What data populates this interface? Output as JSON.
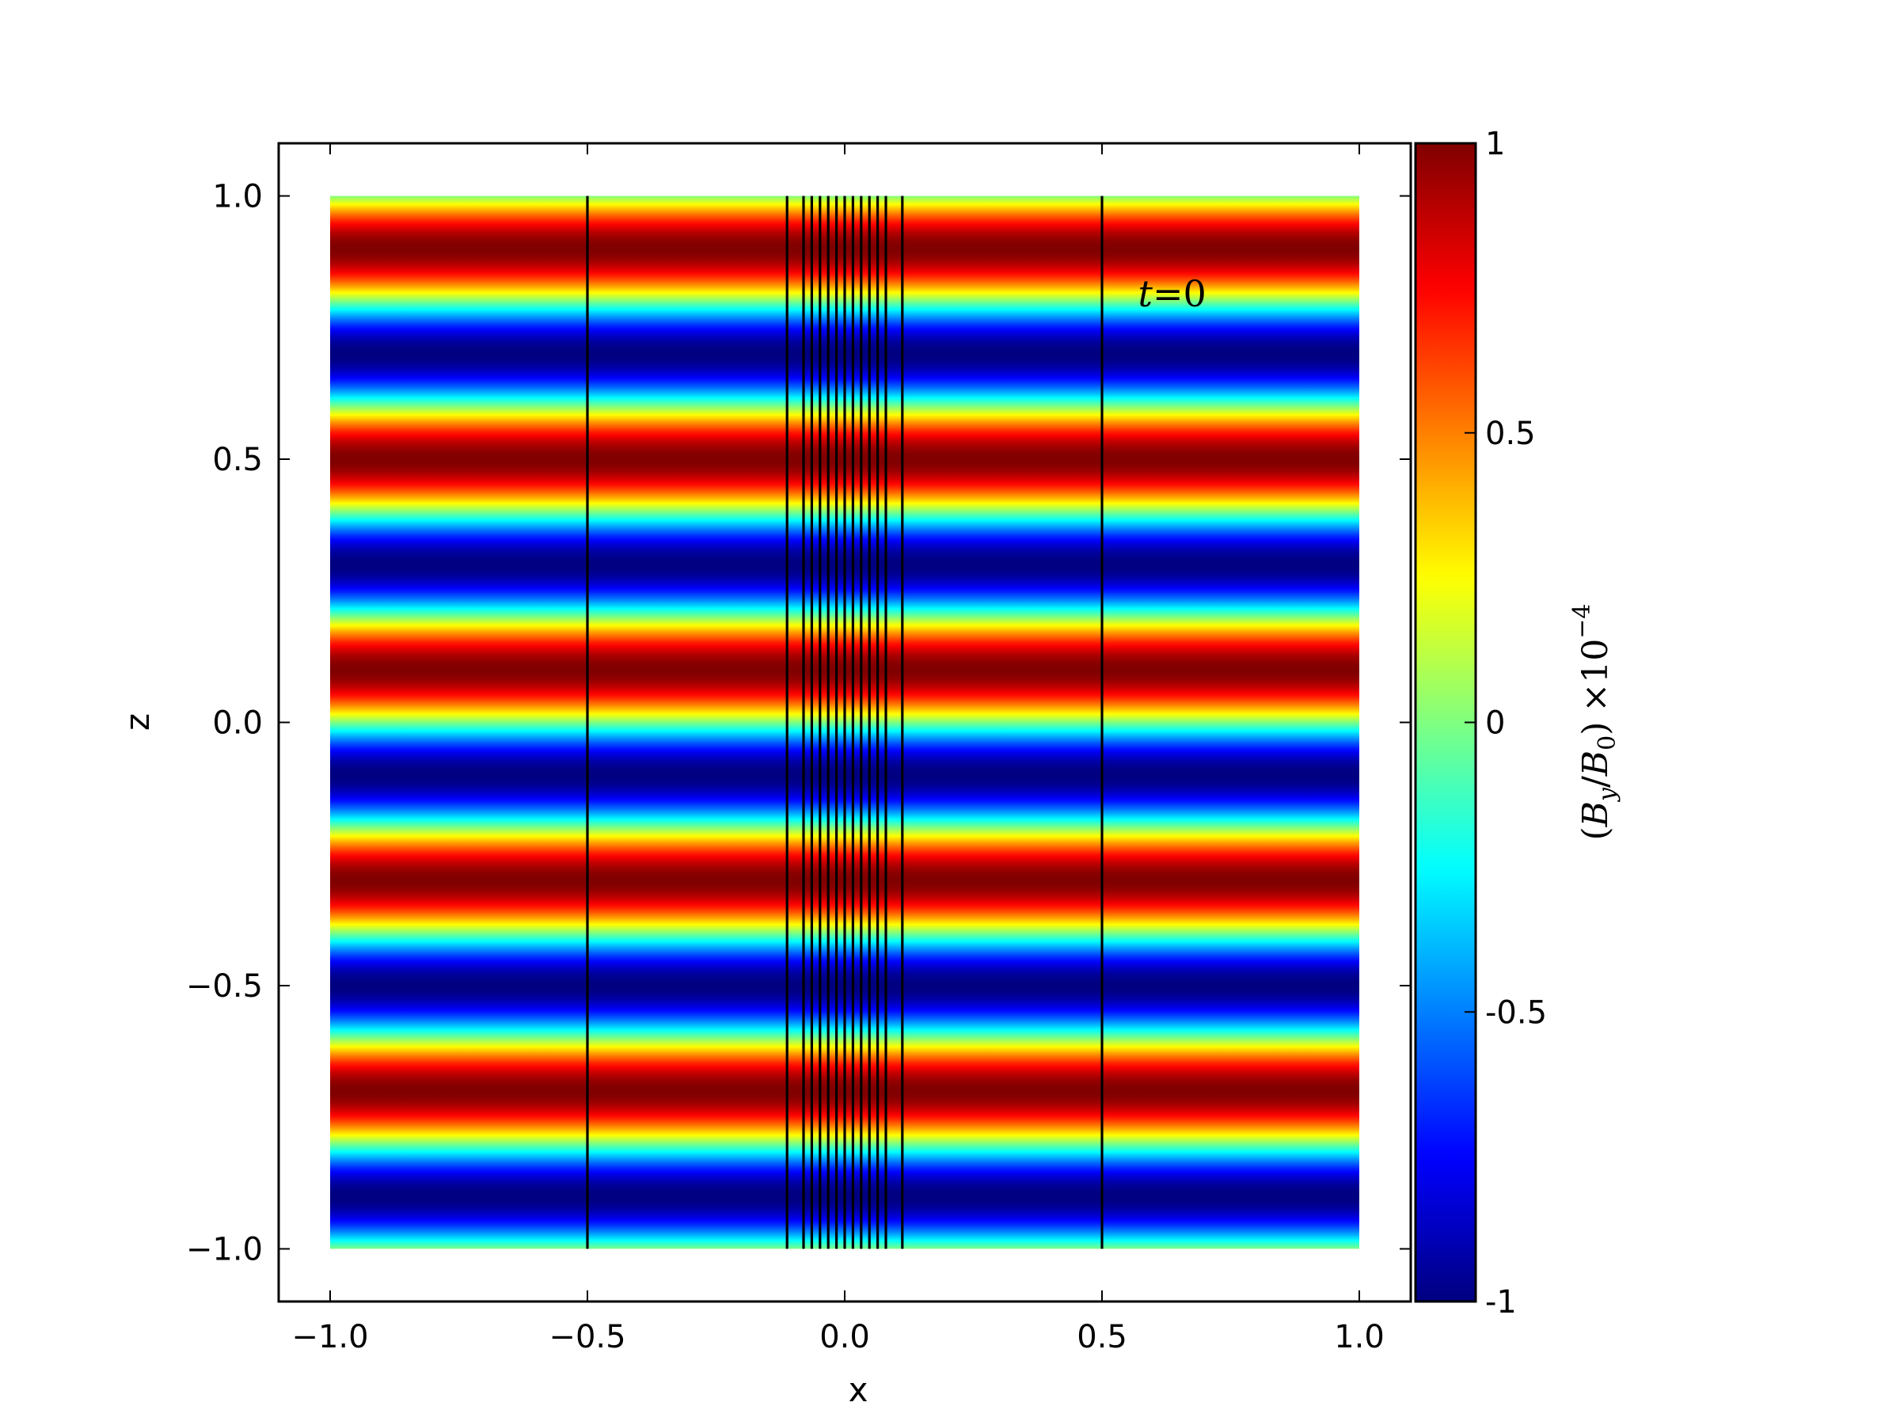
{
  "chart_data": {
    "type": "heatmap",
    "title": "",
    "xlabel": "x",
    "ylabel": "z",
    "xlim": [
      -1.1,
      1.1
    ],
    "ylim": [
      -1.1,
      1.1
    ],
    "field_extent": {
      "x": [
        -1.0,
        1.0
      ],
      "z": [
        -1.0,
        1.0
      ]
    },
    "field": {
      "description_expr": "sin(2*pi*z/0.4)",
      "wavelength_z": 0.4,
      "amplitude": 1,
      "varies_along": "z",
      "colormap": "jet"
    },
    "x_ticks": [
      "−1.0",
      "−0.5",
      "0.0",
      "0.5",
      "1.0"
    ],
    "x_tick_values": [
      -1.0,
      -0.5,
      0.0,
      0.5,
      1.0
    ],
    "z_ticks": [
      "−1.0",
      "−0.5",
      "0.0",
      "0.5",
      "1.0"
    ],
    "z_tick_values": [
      -1.0,
      -0.5,
      0.0,
      0.5,
      1.0
    ],
    "contour_lines_x": [
      -0.5,
      -0.112,
      -0.08,
      -0.064,
      -0.048,
      -0.032,
      -0.016,
      0.0,
      0.016,
      0.032,
      0.048,
      0.064,
      0.08,
      0.112,
      0.5
    ],
    "annotation": {
      "text_lhs": "t",
      "text_eq": "=0",
      "x": 0.57,
      "z": 0.79
    },
    "colorbar": {
      "range": [
        -1,
        1
      ],
      "ticks": [
        "-1",
        "-0.5",
        "0",
        "0.5",
        "1"
      ],
      "tick_values": [
        -1,
        -0.5,
        0,
        0.5,
        1
      ],
      "label": "(B_y/B_0) ×10^-4",
      "label_parts": {
        "open": "(",
        "B1": "B",
        "sub1": "y",
        "slash": "/",
        "B2": "B",
        "sub2": "0",
        "close": ")",
        "times": "×10",
        "exp": "−4"
      }
    },
    "grid": false,
    "legend": "none"
  }
}
